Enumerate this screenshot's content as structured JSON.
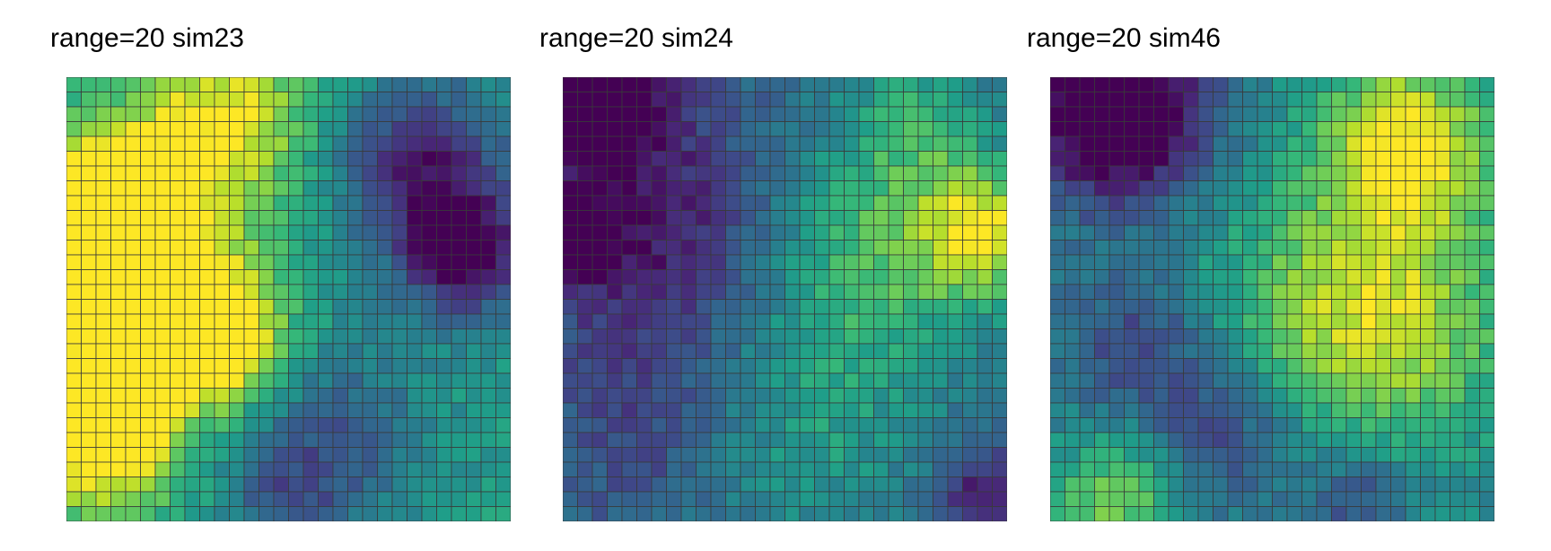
{
  "chart_data": [
    {
      "type": "heatmap",
      "title": "range=20 sim23",
      "colormap": "viridis",
      "nrows": 30,
      "ncols": 30,
      "seed": 23,
      "features": [
        {
          "x": 0.15,
          "y": 0.45,
          "v": 0.72,
          "s": 0.16
        },
        {
          "x": 0.08,
          "y": 0.8,
          "v": 0.65,
          "s": 0.12
        },
        {
          "x": 0.35,
          "y": 0.6,
          "v": 0.55,
          "s": 0.1
        },
        {
          "x": 0.35,
          "y": 0.1,
          "v": 0.45,
          "s": 0.14
        },
        {
          "x": 0.08,
          "y": 0.25,
          "v": 0.45,
          "s": 0.1
        },
        {
          "x": 0.9,
          "y": 0.4,
          "v": -0.55,
          "s": 0.1
        },
        {
          "x": 0.8,
          "y": 0.2,
          "v": -0.45,
          "s": 0.14
        },
        {
          "x": 0.6,
          "y": 0.8,
          "v": -0.25,
          "s": 0.15
        },
        {
          "x": 0.5,
          "y": 0.95,
          "v": -0.2,
          "s": 0.1
        }
      ],
      "base": 0.55
    },
    {
      "type": "heatmap",
      "title": "range=20 sim24",
      "colormap": "viridis",
      "nrows": 30,
      "ncols": 30,
      "seed": 24,
      "features": [
        {
          "x": 0.05,
          "y": 0.02,
          "v": -0.6,
          "s": 0.12
        },
        {
          "x": 0.02,
          "y": 0.37,
          "v": -0.45,
          "s": 0.06
        },
        {
          "x": 0.2,
          "y": 0.35,
          "v": -0.3,
          "s": 0.2
        },
        {
          "x": 0.95,
          "y": 0.35,
          "v": 0.55,
          "s": 0.1
        },
        {
          "x": 0.7,
          "y": 0.4,
          "v": 0.35,
          "s": 0.18
        },
        {
          "x": 0.8,
          "y": 0.1,
          "v": 0.25,
          "s": 0.12
        },
        {
          "x": 0.55,
          "y": 0.8,
          "v": 0.2,
          "s": 0.2
        },
        {
          "x": 0.2,
          "y": 0.8,
          "v": -0.15,
          "s": 0.15
        },
        {
          "x": 0.95,
          "y": 0.95,
          "v": -0.3,
          "s": 0.08
        }
      ],
      "base": 0.35
    },
    {
      "type": "heatmap",
      "title": "range=20 sim46",
      "colormap": "viridis",
      "nrows": 30,
      "ncols": 30,
      "seed": 46,
      "features": [
        {
          "x": 0.15,
          "y": 0.08,
          "v": -0.7,
          "s": 0.14
        },
        {
          "x": 0.8,
          "y": 0.15,
          "v": 0.55,
          "s": 0.14
        },
        {
          "x": 0.75,
          "y": 0.55,
          "v": 0.45,
          "s": 0.2
        },
        {
          "x": 0.15,
          "y": 0.95,
          "v": 0.35,
          "s": 0.1
        },
        {
          "x": 0.2,
          "y": 0.6,
          "v": -0.25,
          "s": 0.12
        },
        {
          "x": 0.4,
          "y": 0.8,
          "v": -0.25,
          "s": 0.12
        },
        {
          "x": 0.7,
          "y": 0.95,
          "v": -0.25,
          "s": 0.08
        },
        {
          "x": 0.5,
          "y": 0.5,
          "v": 0.1,
          "s": 0.2
        }
      ],
      "base": 0.45
    }
  ]
}
